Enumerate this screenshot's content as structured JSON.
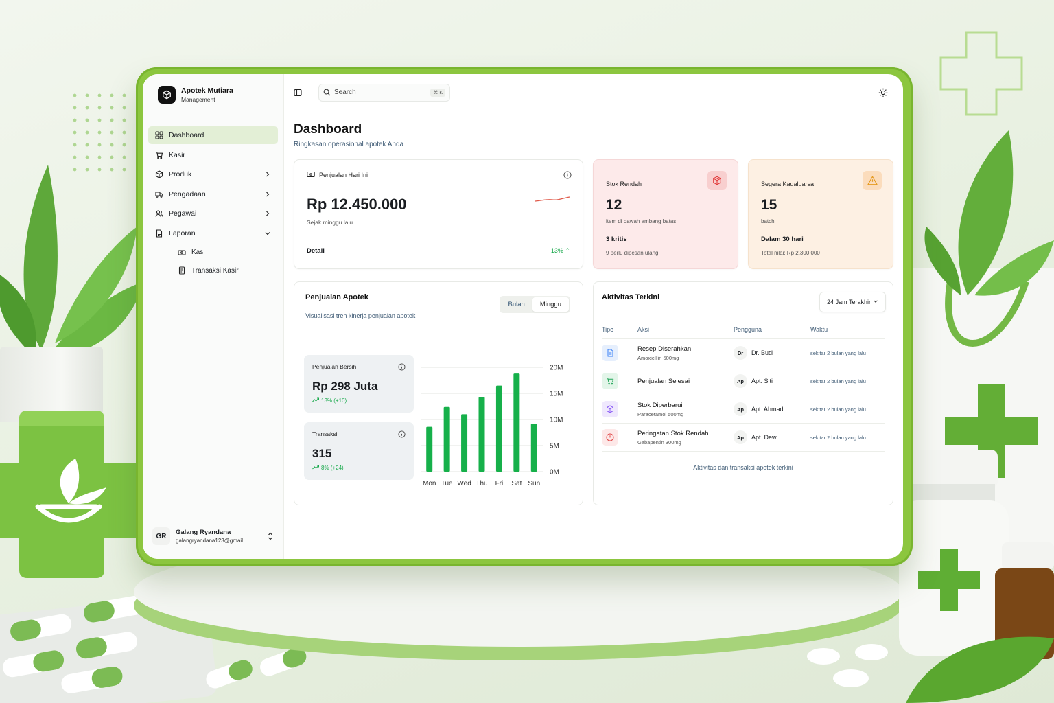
{
  "brand": {
    "title": "Apotek Mutiara",
    "subtitle": "Management"
  },
  "sidebar": {
    "items": [
      {
        "label": "Dashboard",
        "active": true,
        "icon": "grid-icon"
      },
      {
        "label": "Kasir",
        "icon": "cart-icon"
      },
      {
        "label": "Produk",
        "icon": "box-icon",
        "chevron": "right"
      },
      {
        "label": "Pengadaan",
        "icon": "truck-icon",
        "chevron": "right"
      },
      {
        "label": "Pegawai",
        "icon": "users-icon",
        "chevron": "right"
      },
      {
        "label": "Laporan",
        "icon": "report-icon",
        "chevron": "down"
      }
    ],
    "subitems": [
      {
        "label": "Kas",
        "icon": "cash-icon"
      },
      {
        "label": "Transaksi Kasir",
        "icon": "receipt-icon"
      }
    ]
  },
  "user": {
    "initials": "GR",
    "name": "Galang Ryandana",
    "email": "galangryandana123@gmail..."
  },
  "topbar": {
    "search_placeholder": "Search",
    "shortcut": "⌘ K"
  },
  "page": {
    "title": "Dashboard",
    "subtitle": "Ringkasan operasional apotek Anda"
  },
  "cards": {
    "sales": {
      "label": "Penjualan Hari Ini",
      "value": "Rp 12.450.000",
      "note": "Sejak minggu lalu",
      "detail": "Detail",
      "change": "13%"
    },
    "low_stock": {
      "label": "Stok Rendah",
      "value": "12",
      "note": "item di bawah ambang batas",
      "strong": "3 kritis",
      "small": "9 perlu dipesan ulang"
    },
    "expiring": {
      "label": "Segera Kadaluarsa",
      "value": "15",
      "note": "batch",
      "strong": "Dalam 30 hari",
      "small": "Total nilai: Rp 2.300.000"
    }
  },
  "sales_panel": {
    "title": "Penjualan Apotek",
    "subtitle": "Visualisasi tren kinerja penjualan apotek",
    "tabs": [
      "Bulan",
      "Minggu"
    ],
    "active_tab": "Minggu",
    "net": {
      "label": "Penjualan Bersih",
      "value": "Rp 298 Juta",
      "trend": "13% (+10)"
    },
    "tx": {
      "label": "Transaksi",
      "value": "315",
      "trend": "8% (+24)"
    }
  },
  "chart_data": {
    "type": "bar",
    "categories": [
      "Mon",
      "Tue",
      "Wed",
      "Thu",
      "Fri",
      "Sat",
      "Sun"
    ],
    "values": [
      8.6,
      12.4,
      11.0,
      14.3,
      16.5,
      18.8,
      9.2
    ],
    "yticks": [
      "20M",
      "15M",
      "10M",
      "5M",
      "0M"
    ],
    "ylim": [
      0,
      20
    ],
    "title": "",
    "xlabel": "",
    "ylabel": "",
    "color": "#16b04a",
    "grid": true
  },
  "activity": {
    "title": "Aktivitas Terkini",
    "range": "24 Jam Terakhir",
    "columns": [
      "Tipe",
      "Aksi",
      "Pengguna",
      "Waktu"
    ],
    "rows": [
      {
        "icon": "document-icon",
        "color": "#3b82f6",
        "bg": "#e6effd",
        "title": "Resep Diserahkan",
        "sub": "Amoxicillin 500mg",
        "initials": "Dr",
        "user": "Dr. Budi",
        "time": "sekitar 2 bulan yang lalu"
      },
      {
        "icon": "cart-icon",
        "color": "#22a559",
        "bg": "#e3f5e9",
        "title": "Penjualan Selesai",
        "sub": "",
        "initials": "Ap",
        "user": "Apt. Siti",
        "time": "sekitar 2 bulan yang lalu"
      },
      {
        "icon": "box-icon",
        "color": "#8b5cf6",
        "bg": "#efe8fd",
        "title": "Stok Diperbarui",
        "sub": "Paracetamol 500mg",
        "initials": "Ap",
        "user": "Apt. Ahmad",
        "time": "sekitar 2 bulan yang lalu"
      },
      {
        "icon": "alert-circle-icon",
        "color": "#e04545",
        "bg": "#fde8e8",
        "title": "Peringatan Stok Rendah",
        "sub": "Gabapentin 300mg",
        "initials": "Ap",
        "user": "Apt. Dewi",
        "time": "sekitar 2 bulan yang lalu"
      }
    ],
    "footer": "Aktivitas dan transaksi apotek terkini"
  }
}
